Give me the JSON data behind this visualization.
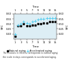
{
  "background_color": "#ffffff",
  "plot_bg_color": "#ddeef5",
  "natural_aging_x": [
    1,
    2,
    3,
    4,
    5,
    6,
    7,
    8,
    9,
    10,
    11,
    12,
    13,
    14,
    15
  ],
  "natural_aging_y": [
    0.38,
    0.48,
    0.48,
    0.5,
    0.48,
    0.48,
    0.49,
    0.49,
    0.5,
    0.5,
    0.51,
    0.51,
    0.52,
    0.52,
    0.52
  ],
  "accelerated_aging_x": [
    1,
    2,
    3,
    4,
    5,
    6,
    7,
    8,
    9,
    10,
    11,
    12,
    13,
    14,
    15
  ],
  "accelerated_aging_y": [
    0.4,
    0.49,
    0.5,
    0.52,
    0.51,
    0.5,
    0.52,
    0.53,
    0.54,
    0.55,
    0.55,
    0.56,
    0.56,
    0.56,
    0.56
  ],
  "natural_color": "#111111",
  "accelerated_color": "#55ccee",
  "natural_marker": "s",
  "accelerated_marker": "+",
  "natural_label": "Natural aging",
  "accelerated_label": "Accelerated aging",
  "ylim": [
    0.35,
    0.6
  ],
  "yticks": [
    0.4,
    0.45,
    0.5,
    0.55,
    0.6
  ],
  "xlim": [
    0.5,
    15.5
  ],
  "xticks_bottom": [
    1,
    3,
    5,
    7,
    9,
    11,
    13,
    15
  ],
  "xticks_top": [
    1,
    3,
    5,
    7,
    9,
    11,
    13,
    15
  ],
  "top_axis_label": "Time",
  "bottom_axis_label": "Time",
  "ylabel_left": "SFC",
  "ylabel_right": "SFC",
  "caption_line1": "The x-values in months corresponds to natural aging;",
  "caption_line2": "the scale in days corresponds to accelerated aging."
}
